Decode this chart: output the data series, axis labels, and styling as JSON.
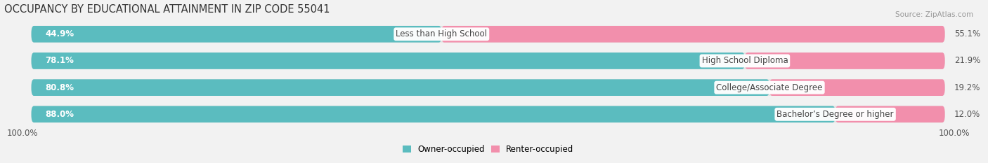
{
  "title": "OCCUPANCY BY EDUCATIONAL ATTAINMENT IN ZIP CODE 55041",
  "source": "Source: ZipAtlas.com",
  "categories": [
    "Less than High School",
    "High School Diploma",
    "College/Associate Degree",
    "Bachelor’s Degree or higher"
  ],
  "owner_values": [
    44.9,
    78.1,
    80.8,
    88.0
  ],
  "renter_values": [
    55.1,
    21.9,
    19.2,
    12.0
  ],
  "owner_color": "#5bbcbf",
  "renter_color": "#f28fac",
  "bg_color": "#f2f2f2",
  "bar_bg_color": "#e2e2e2",
  "title_fontsize": 10.5,
  "label_fontsize": 8.5,
  "value_fontsize": 8.5,
  "legend_labels": [
    "Owner-occupied",
    "Renter-occupied"
  ],
  "axis_label_left": "100.0%",
  "axis_label_right": "100.0%"
}
